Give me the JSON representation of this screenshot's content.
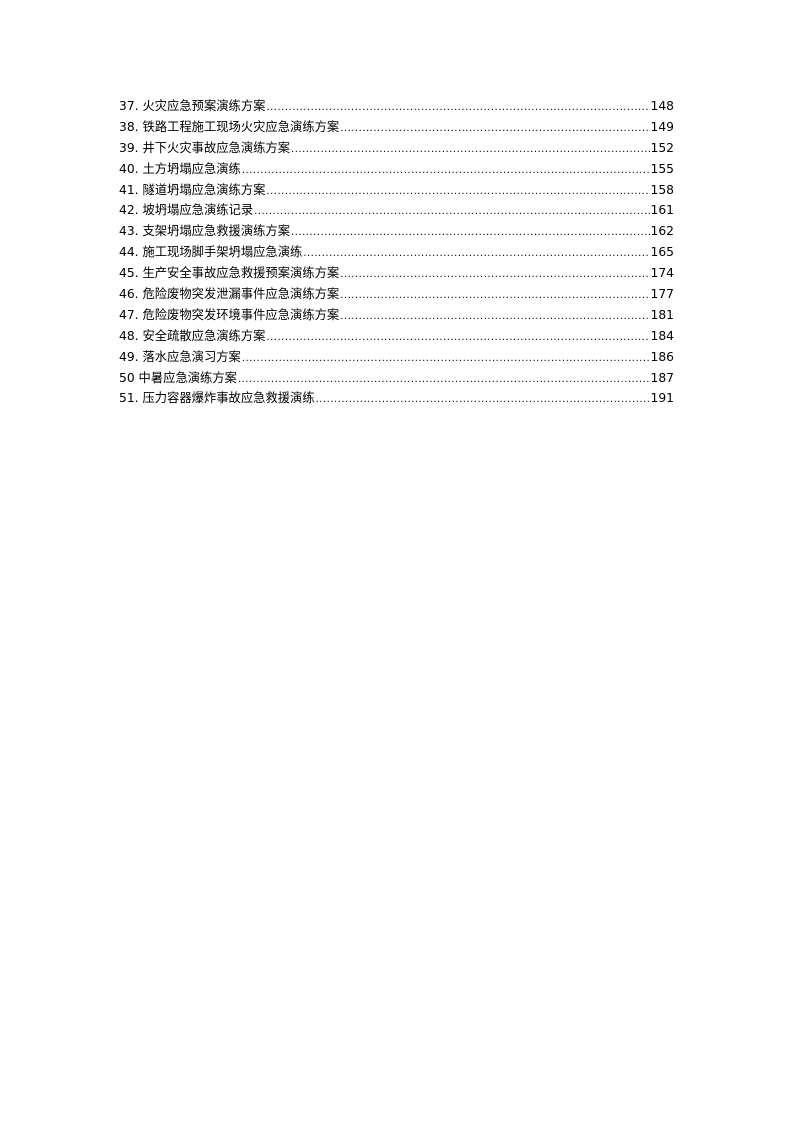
{
  "toc": [
    {
      "title": "37. 火灾应急预案演练方案",
      "page": "148"
    },
    {
      "title": "38. 铁路工程施工现场火灾应急演练方案",
      "page": "149"
    },
    {
      "title": "39. 井下火灾事故应急演练方案",
      "page": "152"
    },
    {
      "title": "40. 土方坍塌应急演练",
      "page": "155"
    },
    {
      "title": "41. 隧道坍塌应急演练方案",
      "page": "158"
    },
    {
      "title": "42. 坡坍塌应急演练记录",
      "page": "161"
    },
    {
      "title": "43. 支架坍塌应急救援演练方案",
      "page": "162"
    },
    {
      "title": "44. 施工现场脚手架坍塌应急演练",
      "page": "165"
    },
    {
      "title": "45. 生产安全事故应急救援预案演练方案",
      "page": "174"
    },
    {
      "title": "46. 危险废物突发泄漏事件应急演练方案",
      "page": "177"
    },
    {
      "title": "47. 危险废物突发环境事件应急演练方案",
      "page": "181"
    },
    {
      "title": "48. 安全疏散应急演练方案",
      "page": "184"
    },
    {
      "title": "49. 落水应急演习方案",
      "page": "186"
    },
    {
      "title": "50 中暑应急演练方案",
      "page": "187"
    },
    {
      "title": "51. 压力容器爆炸事故应急救援演练",
      "page": "191"
    }
  ]
}
